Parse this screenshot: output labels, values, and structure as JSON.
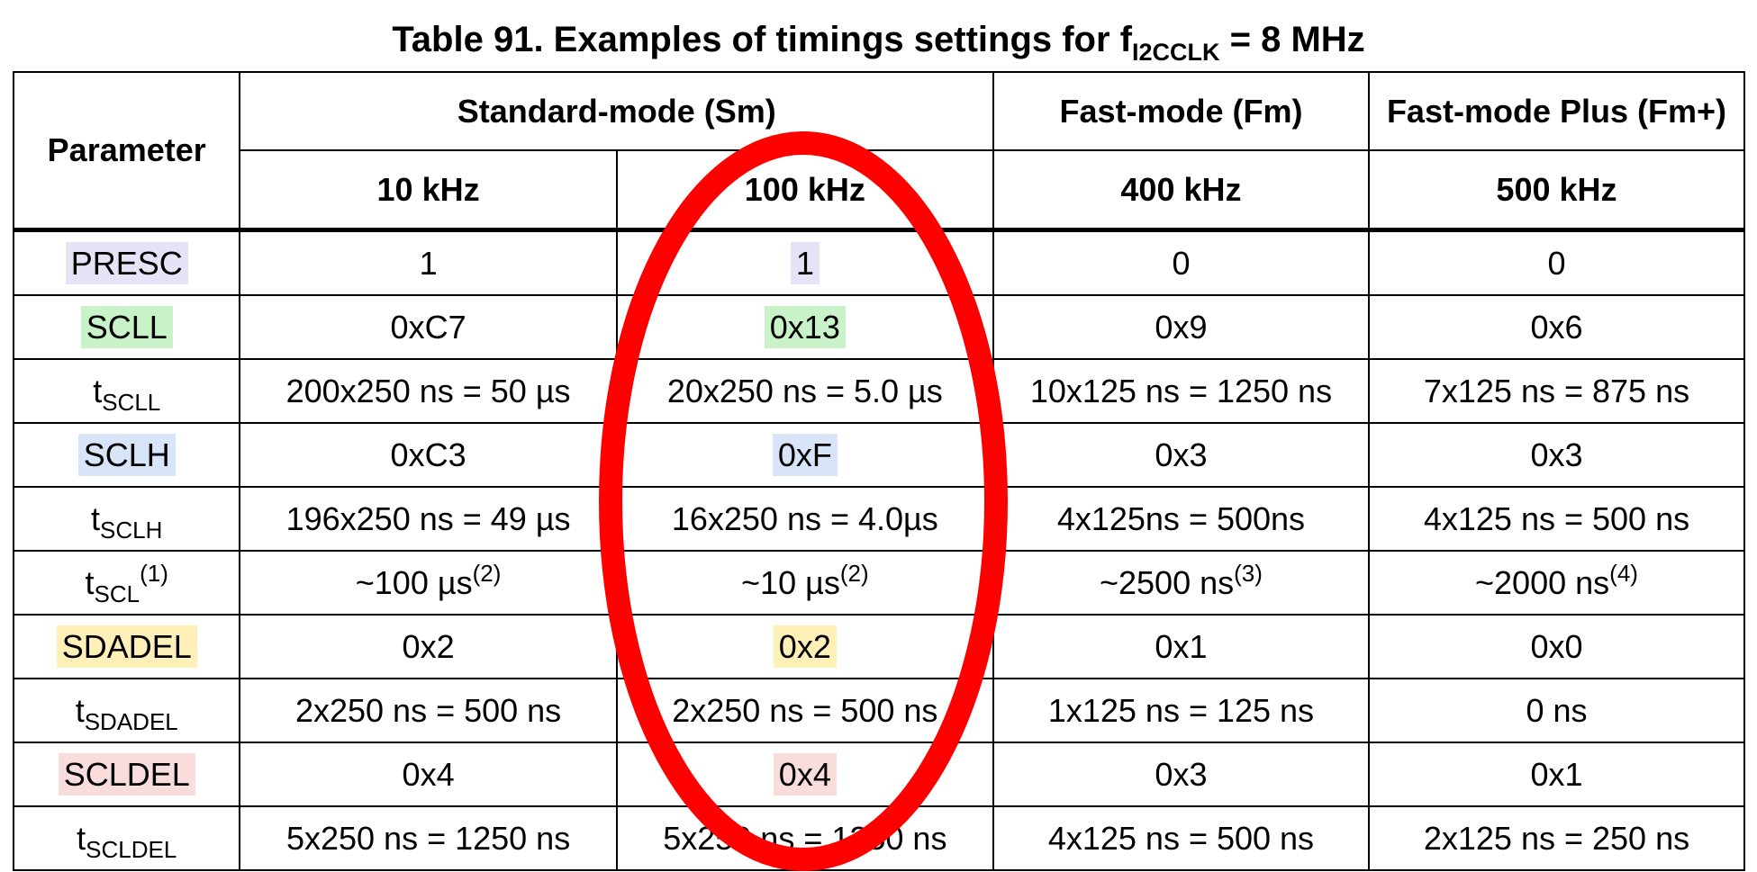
{
  "caption": {
    "prefix": "Table 91. Examples of timings settings for f",
    "subscript": "I2CCLK",
    "suffix": " = 8 MHz"
  },
  "headers": {
    "parameter": "Parameter",
    "standard_mode": "Standard-mode (Sm)",
    "fast_mode": "Fast-mode (Fm)",
    "fast_mode_plus": "Fast-mode Plus (Fm+)",
    "freq_10": "10 kHz",
    "freq_100": "100 kHz",
    "freq_400": "400 kHz",
    "freq_500": "500 kHz"
  },
  "rows": [
    {
      "param": "PRESC",
      "v10": "1",
      "v100": "1",
      "v400": "0",
      "v500": "0"
    },
    {
      "param": "SCLL",
      "v10": "0xC7",
      "v100": "0x13",
      "v400": "0x9",
      "v500": "0x6"
    },
    {
      "param_base": "t",
      "param_sub": "SCLL",
      "v10": "200x250 ns = 50 µs",
      "v100": "20x250 ns = 5.0 µs",
      "v400": "10x125 ns = 1250 ns",
      "v500": "7x125 ns = 875 ns"
    },
    {
      "param": "SCLH",
      "v10": "0xC3",
      "v100": "0xF",
      "v400": "0x3",
      "v500": "0x3"
    },
    {
      "param_base": "t",
      "param_sub": "SCLH",
      "v10": "196x250 ns = 49 µs",
      "v100": "16x250 ns = 4.0µs",
      "v400": "4x125ns = 500ns",
      "v500": "4x125 ns = 500 ns"
    },
    {
      "param_base": "t",
      "param_sub": "SCL",
      "param_sup": "(1)",
      "v10": "~100 µs",
      "v10_sup": "(2)",
      "v100": "~10 µs",
      "v100_sup": "(2)",
      "v400": "~2500 ns",
      "v400_sup": "(3)",
      "v500": "~2000 ns",
      "v500_sup": "(4)"
    },
    {
      "param": "SDADEL",
      "v10": "0x2",
      "v100": "0x2",
      "v400": "0x1",
      "v500": "0x0"
    },
    {
      "param_base": "t",
      "param_sub": "SDADEL",
      "v10": "2x250 ns = 500 ns",
      "v100": "2x250 ns = 500 ns",
      "v400": "1x125 ns = 125 ns",
      "v500": "0 ns"
    },
    {
      "param": "SCLDEL",
      "v10": "0x4",
      "v100": "0x4",
      "v400": "0x3",
      "v500": "0x1"
    },
    {
      "param_base": "t",
      "param_sub": "SCLDEL",
      "v10": "5x250 ns = 1250 ns",
      "v100": "5x250 ns = 1250 ns",
      "v400": "4x125 ns = 500 ns",
      "v500": "2x125 ns = 250 ns"
    }
  ],
  "colors": {
    "presc": "#e7e2f6",
    "scll": "#c9f2c9",
    "sclh": "#d8e4f7",
    "sdadel": "#fff0b8",
    "scldel": "#f9dcdc",
    "annotation": "#ff0000"
  }
}
